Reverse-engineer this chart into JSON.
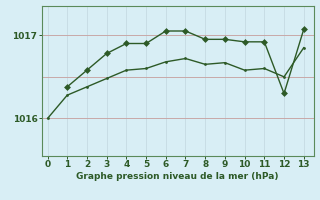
{
  "line1_x": [
    0,
    1,
    2,
    3,
    4,
    5,
    6,
    7,
    8,
    9,
    10,
    11,
    12,
    13
  ],
  "line1_y": [
    1016.0,
    1016.28,
    1016.38,
    1016.48,
    1016.58,
    1016.6,
    1016.68,
    1016.72,
    1016.65,
    1016.67,
    1016.58,
    1016.6,
    1016.5,
    1016.85
  ],
  "line2_x": [
    1,
    2,
    3,
    4,
    5,
    6,
    7,
    8,
    9,
    10,
    11,
    12,
    13
  ],
  "line2_y": [
    1016.38,
    1016.58,
    1016.78,
    1016.9,
    1016.9,
    1017.05,
    1017.05,
    1016.95,
    1016.95,
    1016.92,
    1016.92,
    1016.3,
    1017.07
  ],
  "line_color": "#2d5a27",
  "bg_color": "#d8eef5",
  "grid_color_v": "#c8dde5",
  "grid_color_h": "#c8a8a8",
  "xlabel": "Graphe pression niveau de la mer (hPa)",
  "yticks": [
    1016,
    1017
  ],
  "ylim": [
    1015.55,
    1017.35
  ],
  "xlim": [
    -0.3,
    13.5
  ],
  "xlabel_color": "#2d5a27",
  "tick_color": "#2d5a27",
  "axis_color": "#5a8a5a"
}
